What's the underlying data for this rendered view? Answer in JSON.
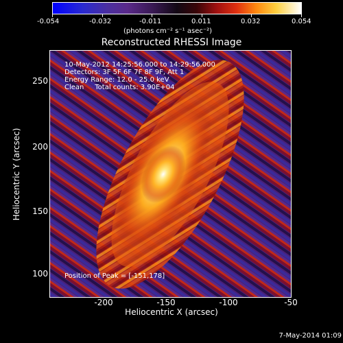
{
  "colorbar": {
    "tick_labels": [
      "-0.054",
      "-0.032",
      "-0.011",
      "0.011",
      "0.032",
      "0.054"
    ],
    "units": "(photons cm⁻² s⁻¹ asec⁻²)",
    "range": [
      -0.054,
      0.054
    ],
    "colors": [
      "#0000ff",
      "#5a2a8a",
      "#120814",
      "#a01010",
      "#ff8a10",
      "#ffffff"
    ]
  },
  "title": "Reconstructed RHESSI Image",
  "info": {
    "time_range": "10-May-2012 14:25:56.000 to 14:29:56.000",
    "detectors": "Detectors: 3F 5F 6F 7F 8F 9F, Att 1",
    "energy": "Energy Range: 12.0 - 25.0 keV",
    "method": "Clean     Total counts: 3.90E+04"
  },
  "peak_text": "Position of Peak = [-151,178]",
  "axes": {
    "xlabel": "Heliocentric X (arcsec)",
    "ylabel": "Heliocentric Y (arcsec)",
    "xtick_labels": [
      "-200",
      "-150",
      "-100",
      "-50"
    ],
    "ytick_labels": [
      "250",
      "200",
      "150",
      "100"
    ],
    "xlim": [
      -240,
      -49
    ],
    "ylim": [
      86,
      282
    ]
  },
  "peak": {
    "x": -151,
    "y": 178
  },
  "timestamp": "7-May-2014 01:09"
}
